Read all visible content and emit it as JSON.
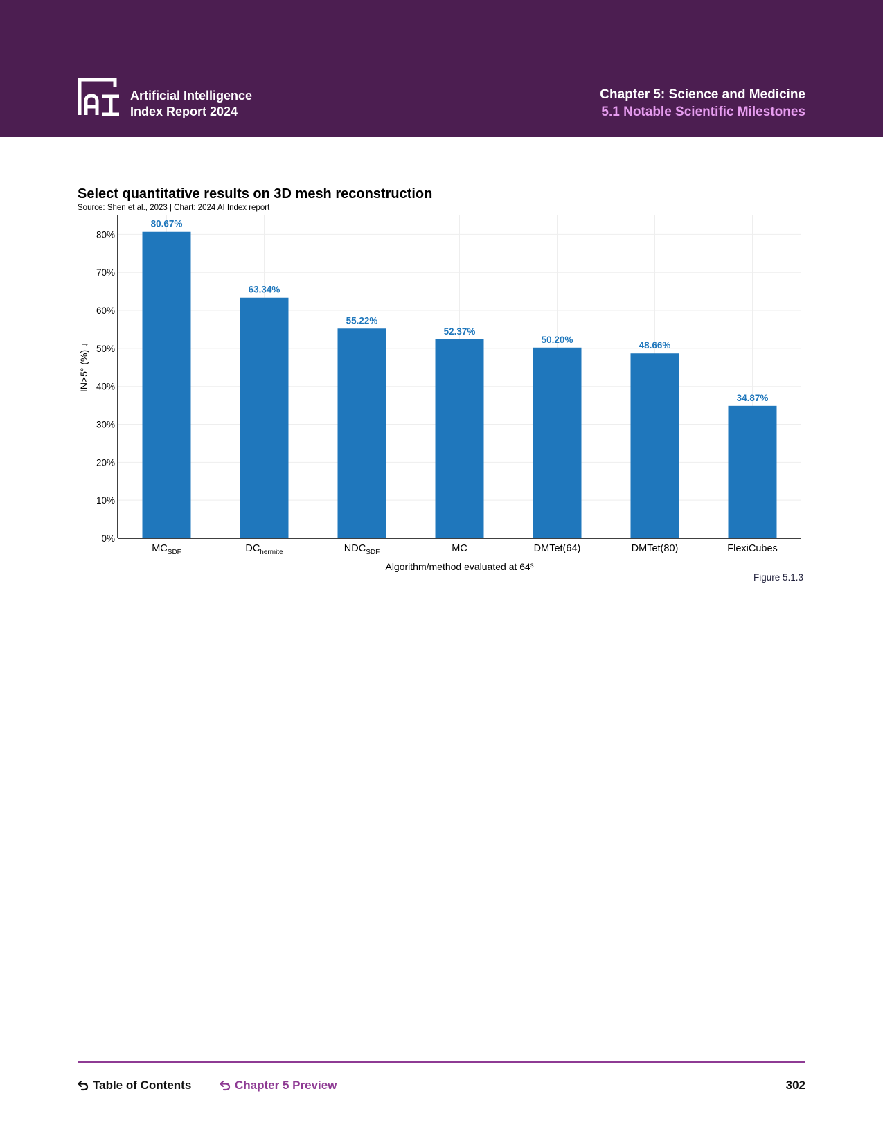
{
  "header": {
    "brand_line1": "Artificial Intelligence",
    "brand_line2": "Index Report 2024",
    "chapter_title": "Chapter 5: Science and Medicine",
    "section_title": "5.1 Notable Scientific Milestones",
    "background_color": "#4c1e51",
    "section_color": "#e79df0"
  },
  "chart_data": {
    "type": "bar",
    "title": "Select quantitative results on 3D mesh reconstruction",
    "source": "Source: Shen et al., 2023 | Chart: 2024 AI Index report",
    "xlabel": "Algorithm/method evaluated at 64³",
    "ylabel": "IN>5° (%) ↓",
    "categories": [
      {
        "base": "MC",
        "sub": "SDF"
      },
      {
        "base": "DC",
        "sub": "hermite"
      },
      {
        "base": "NDC",
        "sub": "SDF"
      },
      {
        "base": "MC",
        "sub": ""
      },
      {
        "base": "DMTet(64)",
        "sub": ""
      },
      {
        "base": "DMTet(80)",
        "sub": ""
      },
      {
        "base": "FlexiCubes",
        "sub": ""
      }
    ],
    "values": [
      80.67,
      63.34,
      55.22,
      52.37,
      50.2,
      48.66,
      34.87
    ],
    "value_labels": [
      "80.67%",
      "63.34%",
      "55.22%",
      "52.37%",
      "50.20%",
      "48.66%",
      "34.87%"
    ],
    "yticks": [
      "0%",
      "10%",
      "20%",
      "30%",
      "40%",
      "50%",
      "60%",
      "70%",
      "80%"
    ],
    "ylim": [
      0,
      85
    ],
    "grid": true,
    "bar_color": "#1f77bc",
    "label_color": "#1f77bc"
  },
  "figure_label": "Figure 5.1.3",
  "footer": {
    "toc_label": "Table of Contents",
    "preview_label": "Chapter 5 Preview",
    "page_number": "302",
    "accent_color": "#8e3b94"
  }
}
